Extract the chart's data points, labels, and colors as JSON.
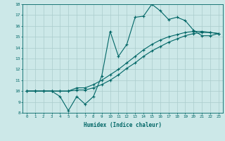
{
  "xlabel": "Humidex (Indice chaleur)",
  "bg_color": "#cce8e8",
  "grid_color": "#aacccc",
  "line_color": "#006666",
  "xlim": [
    -0.5,
    23.5
  ],
  "ylim": [
    8,
    18
  ],
  "xticks": [
    0,
    1,
    2,
    3,
    4,
    5,
    6,
    7,
    8,
    9,
    10,
    11,
    12,
    13,
    14,
    15,
    16,
    17,
    18,
    19,
    20,
    21,
    22,
    23
  ],
  "yticks": [
    8,
    9,
    10,
    11,
    12,
    13,
    14,
    15,
    16,
    17,
    18
  ],
  "line1_x": [
    0,
    1,
    2,
    3,
    4,
    5,
    6,
    7,
    8,
    9,
    10,
    11,
    12,
    13,
    14,
    15,
    16,
    17,
    18,
    19,
    20,
    21,
    22,
    23
  ],
  "line1_y": [
    10,
    10,
    10,
    10,
    9.5,
    8.2,
    9.5,
    8.8,
    9.5,
    11.4,
    15.5,
    13.2,
    14.3,
    16.8,
    16.9,
    18.0,
    17.4,
    16.6,
    16.8,
    16.5,
    15.6,
    15.1,
    15.1,
    15.3
  ],
  "line2_x": [
    0,
    1,
    2,
    3,
    4,
    5,
    6,
    7,
    8,
    9,
    10,
    11,
    12,
    13,
    14,
    15,
    16,
    17,
    18,
    19,
    20,
    21,
    22,
    23
  ],
  "line2_y": [
    10,
    10,
    10,
    10,
    10,
    10,
    10.3,
    10.3,
    10.6,
    11.0,
    11.5,
    12.0,
    12.6,
    13.2,
    13.8,
    14.3,
    14.7,
    15.0,
    15.2,
    15.4,
    15.5,
    15.5,
    15.4,
    15.3
  ],
  "line3_x": [
    0,
    1,
    2,
    3,
    4,
    5,
    6,
    7,
    8,
    9,
    10,
    11,
    12,
    13,
    14,
    15,
    16,
    17,
    18,
    19,
    20,
    21,
    22,
    23
  ],
  "line3_y": [
    10,
    10,
    10,
    10,
    10,
    10,
    10.1,
    10.1,
    10.3,
    10.6,
    11.0,
    11.5,
    12.1,
    12.6,
    13.2,
    13.7,
    14.1,
    14.5,
    14.8,
    15.1,
    15.3,
    15.4,
    15.4,
    15.3
  ]
}
